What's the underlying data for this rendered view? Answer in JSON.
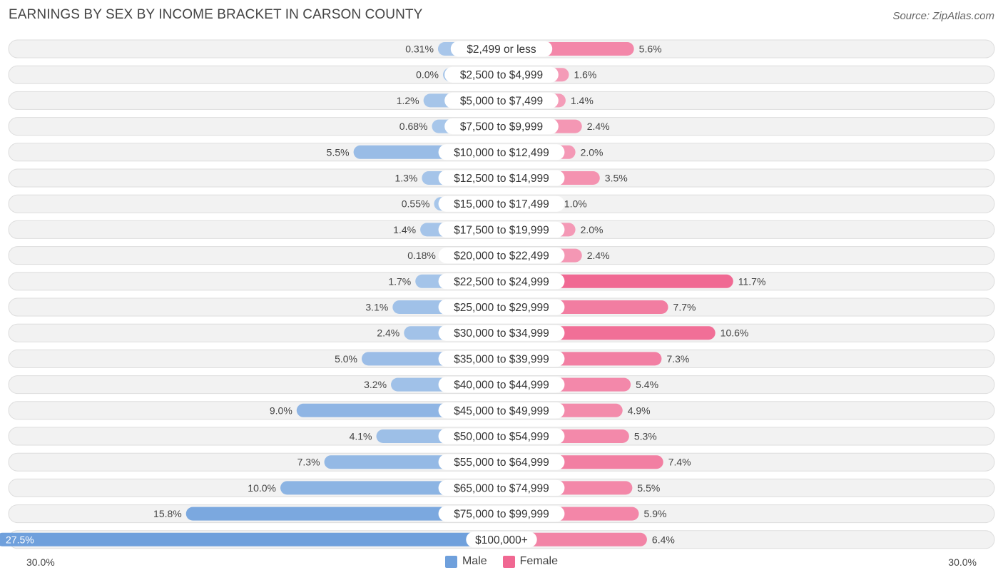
{
  "title": "EARNINGS BY SEX BY INCOME BRACKET IN CARSON COUNTY",
  "source": "Source: ZipAtlas.com",
  "colors": {
    "male": "#6fa0dc",
    "male_light": "#a9c7ea",
    "female": "#f06892",
    "female_light": "#f5a3bd",
    "row_bg": "#f2f2f2",
    "row_border": "#dddddd"
  },
  "legend": {
    "male_label": "Male",
    "female_label": "Female"
  },
  "axis": {
    "left_label": "30.0%",
    "right_label": "30.0%"
  },
  "chart_data": {
    "type": "bar",
    "orientation": "horizontal-diverging",
    "title": "EARNINGS BY SEX BY INCOME BRACKET IN CARSON COUNTY",
    "xlim": [
      -30,
      30
    ],
    "categories": [
      "$2,499 or less",
      "$2,500 to $4,999",
      "$5,000 to $7,499",
      "$7,500 to $9,999",
      "$10,000 to $12,499",
      "$12,500 to $14,999",
      "$15,000 to $17,499",
      "$17,500 to $19,999",
      "$20,000 to $22,499",
      "$22,500 to $24,999",
      "$25,000 to $29,999",
      "$30,000 to $34,999",
      "$35,000 to $39,999",
      "$40,000 to $44,999",
      "$45,000 to $49,999",
      "$50,000 to $54,999",
      "$55,000 to $64,999",
      "$65,000 to $74,999",
      "$75,000 to $99,999",
      "$100,000+"
    ],
    "series": [
      {
        "name": "Male",
        "values": [
          0.31,
          0.0,
          1.2,
          0.68,
          5.5,
          1.3,
          0.55,
          1.4,
          0.18,
          1.7,
          3.1,
          2.4,
          5.0,
          3.2,
          9.0,
          4.1,
          7.3,
          10.0,
          15.8,
          27.5
        ],
        "labels": [
          "0.31%",
          "0.0%",
          "1.2%",
          "0.68%",
          "5.5%",
          "1.3%",
          "0.55%",
          "1.4%",
          "0.18%",
          "1.7%",
          "3.1%",
          "2.4%",
          "5.0%",
          "3.2%",
          "9.0%",
          "4.1%",
          "7.3%",
          "10.0%",
          "15.8%",
          "27.5%"
        ]
      },
      {
        "name": "Female",
        "values": [
          5.6,
          1.6,
          1.4,
          2.4,
          2.0,
          3.5,
          1.0,
          2.0,
          2.4,
          11.7,
          7.7,
          10.6,
          7.3,
          5.4,
          4.9,
          5.3,
          7.4,
          5.5,
          5.9,
          6.4
        ],
        "labels": [
          "5.6%",
          "1.6%",
          "1.4%",
          "2.4%",
          "2.0%",
          "3.5%",
          "1.0%",
          "2.0%",
          "2.4%",
          "11.7%",
          "7.7%",
          "10.6%",
          "7.3%",
          "5.4%",
          "4.9%",
          "5.3%",
          "7.4%",
          "5.5%",
          "5.9%",
          "6.4%"
        ]
      }
    ]
  }
}
